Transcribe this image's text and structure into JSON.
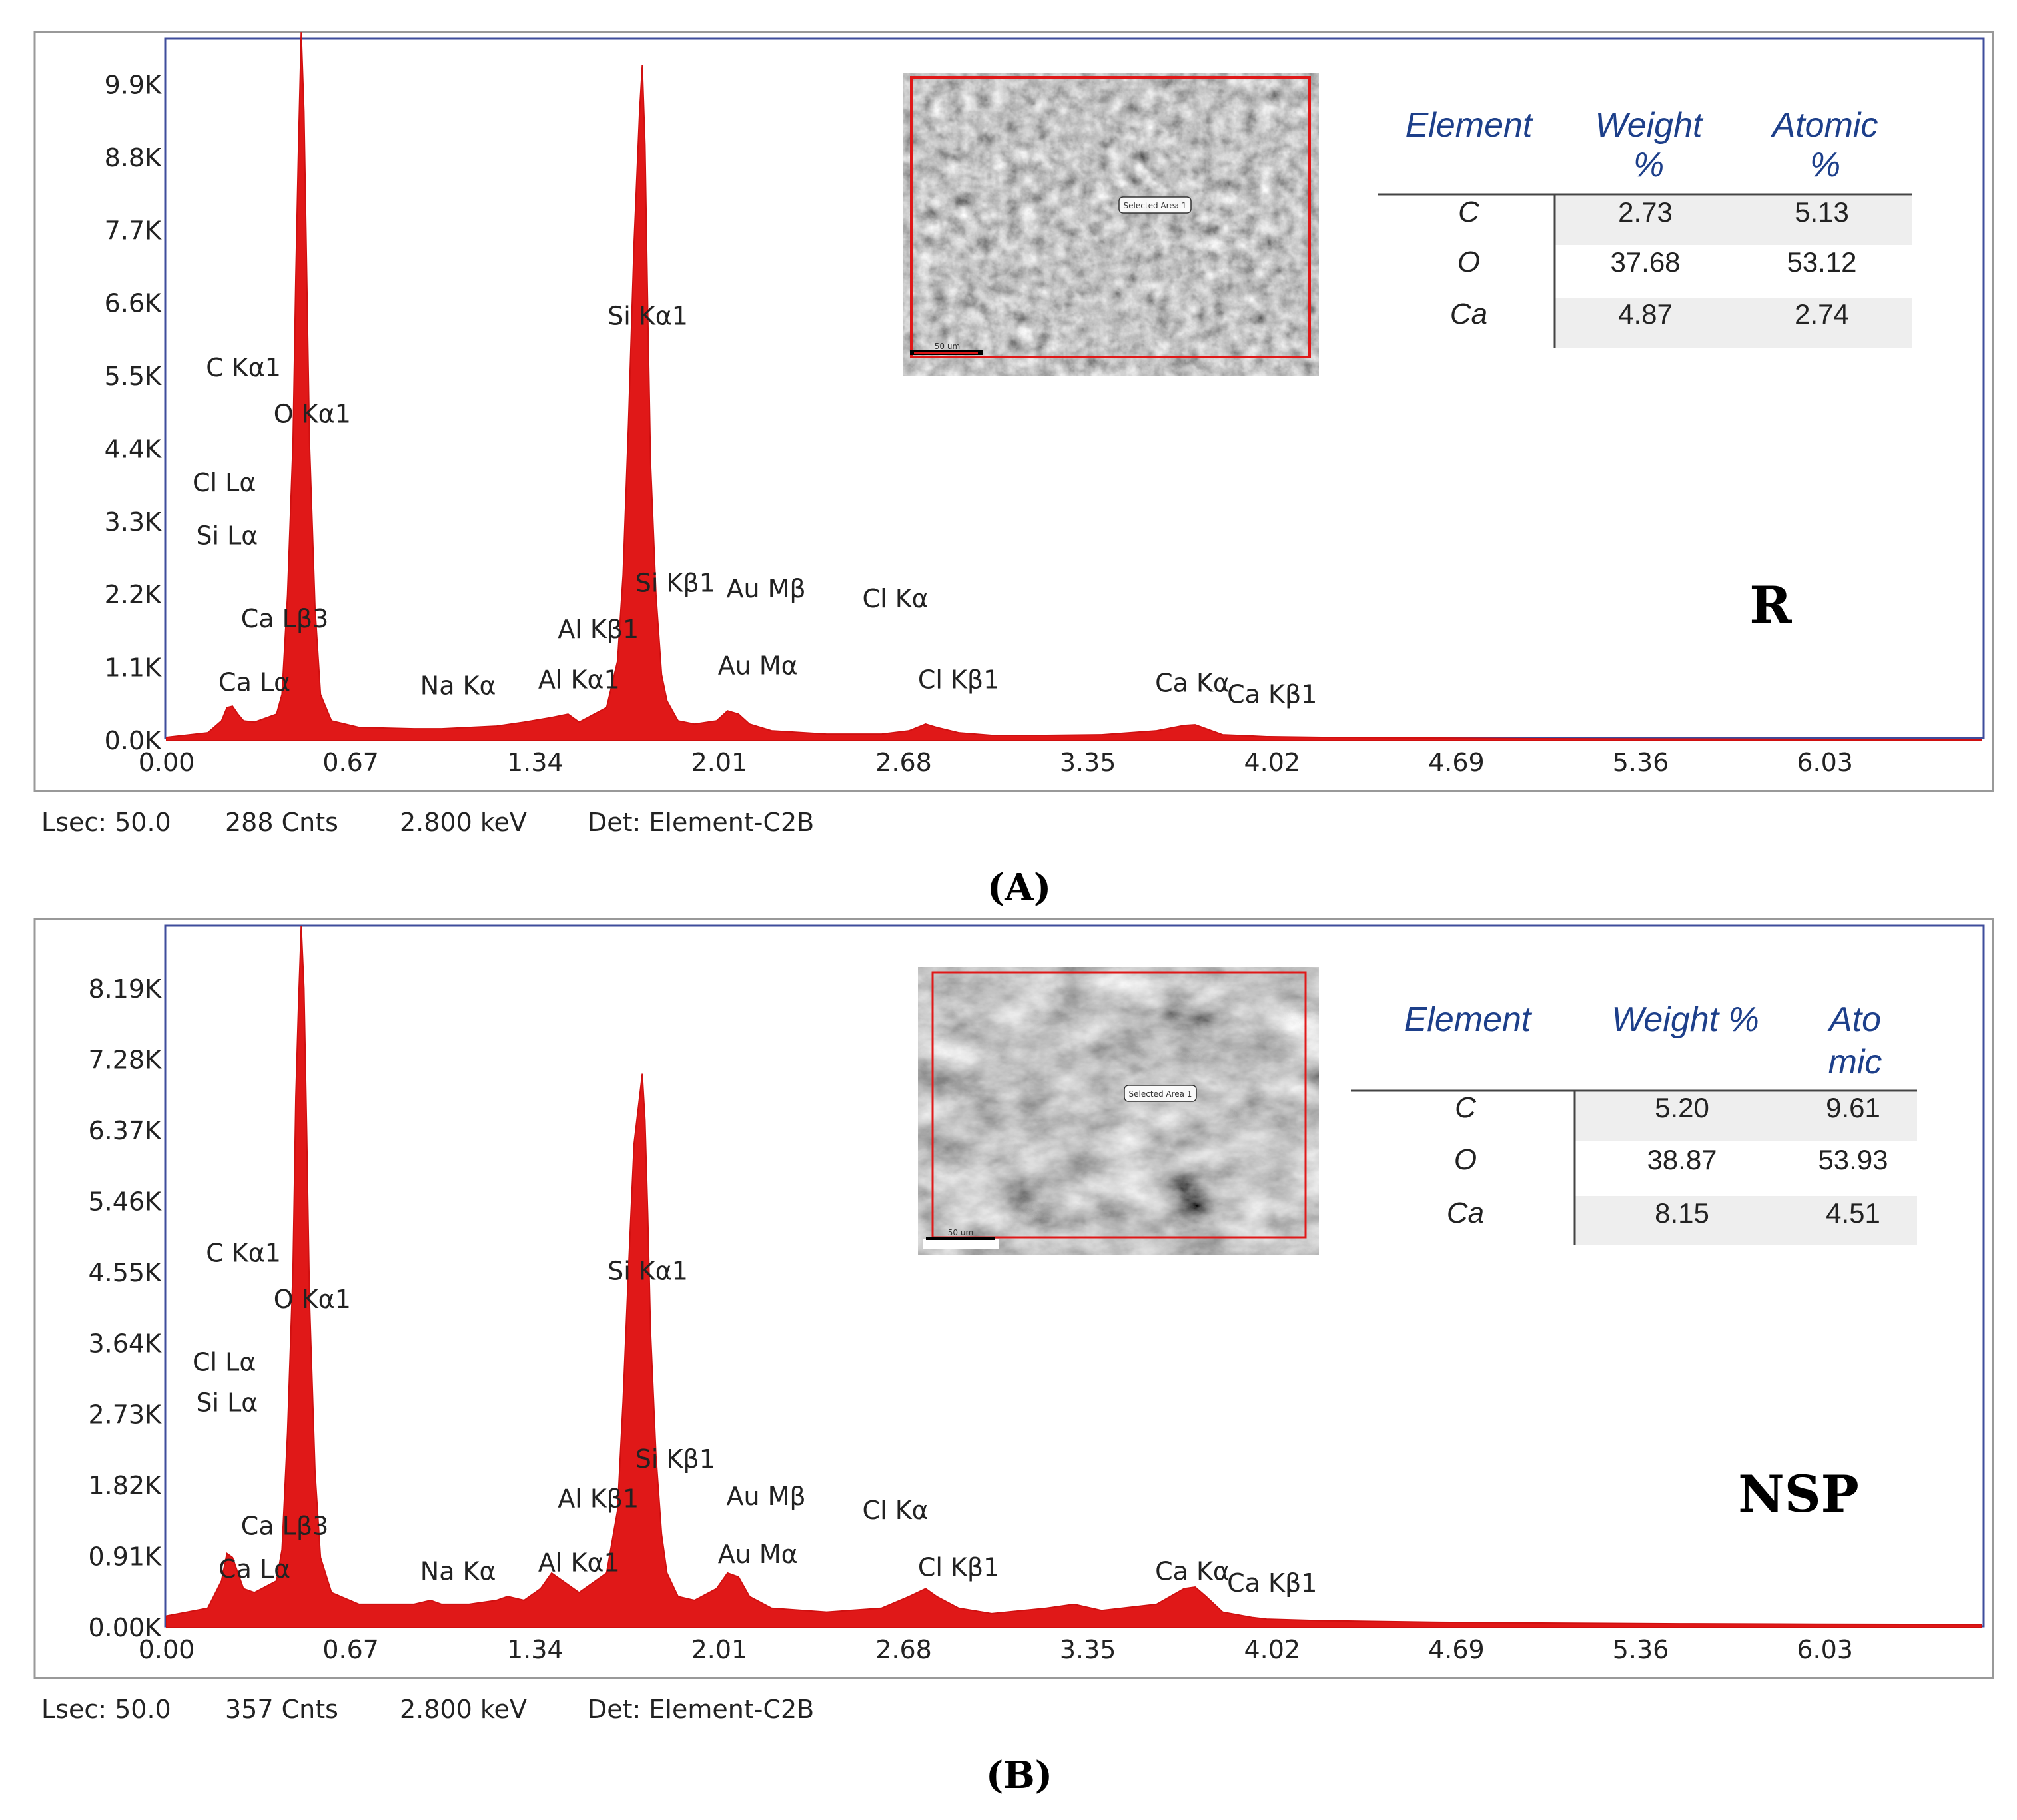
{
  "chart_data": [
    {
      "type": "area",
      "caption": "(A)",
      "sample_label": "R",
      "y_ticks": [
        "0.0K",
        "1.1K",
        "2.2K",
        "3.3K",
        "4.4K",
        "5.5K",
        "6.6K",
        "7.7K",
        "8.8K",
        "9.9K"
      ],
      "y_tick_values": [
        0,
        1100,
        2200,
        3300,
        4400,
        5500,
        6600,
        7700,
        8800,
        9900
      ],
      "ylim": [
        0,
        10600
      ],
      "x_ticks": [
        "0.00",
        "0.67",
        "1.34",
        "2.01",
        "2.68",
        "3.35",
        "4.02",
        "4.69",
        "5.36",
        "6.03"
      ],
      "x_tick_values": [
        0.0,
        0.67,
        1.34,
        2.01,
        2.68,
        3.35,
        4.02,
        4.69,
        5.36,
        6.03
      ],
      "xlim": [
        0,
        6.6
      ],
      "series": [
        {
          "x": [
            0.0,
            0.15,
            0.2,
            0.22,
            0.24,
            0.26,
            0.28,
            0.32,
            0.4,
            0.42,
            0.44,
            0.46,
            0.47,
            0.48,
            0.49,
            0.5,
            0.51,
            0.52,
            0.54,
            0.56,
            0.6,
            0.7,
            0.9,
            1.0,
            1.1,
            1.2,
            1.3,
            1.4,
            1.46,
            1.5,
            1.6,
            1.64,
            1.66,
            1.68,
            1.7,
            1.72,
            1.73,
            1.74,
            1.75,
            1.76,
            1.78,
            1.8,
            1.82,
            1.86,
            1.92,
            2.0,
            2.04,
            2.08,
            2.12,
            2.2,
            2.4,
            2.6,
            2.7,
            2.76,
            2.8,
            2.88,
            3.0,
            3.2,
            3.4,
            3.6,
            3.7,
            3.74,
            3.78,
            3.84,
            3.95,
            4.0,
            4.2,
            4.6,
            5.0,
            5.5,
            6.0,
            6.6
          ],
          "y": [
            50,
            120,
            300,
            500,
            520,
            400,
            300,
            280,
            400,
            700,
            2200,
            4500,
            7000,
            9000,
            10700,
            9500,
            7000,
            4500,
            2000,
            700,
            300,
            200,
            180,
            180,
            200,
            220,
            280,
            350,
            400,
            280,
            500,
            1200,
            2500,
            4800,
            7500,
            9500,
            10200,
            9000,
            6500,
            4200,
            2200,
            1000,
            600,
            300,
            250,
            300,
            450,
            400,
            250,
            150,
            100,
            100,
            150,
            250,
            200,
            120,
            80,
            80,
            90,
            150,
            230,
            240,
            180,
            90,
            70,
            60,
            50,
            40,
            30,
            25,
            20,
            20
          ]
        }
      ],
      "peak_labels": [
        {
          "text": "C  Kα1",
          "x": 0.28,
          "y": 5500
        },
        {
          "text": "O  Kα1",
          "x": 0.53,
          "y": 4800
        },
        {
          "text": "Cl Lα",
          "x": 0.21,
          "y": 3760
        },
        {
          "text": "Si Lα",
          "x": 0.22,
          "y": 2960
        },
        {
          "text": "Ca Lβ3",
          "x": 0.43,
          "y": 1710
        },
        {
          "text": "Ca Lα",
          "x": 0.32,
          "y": 750
        },
        {
          "text": "Na Kα",
          "x": 1.06,
          "y": 700
        },
        {
          "text": "Al Kα1",
          "x": 1.5,
          "y": 790
        },
        {
          "text": "Al Kβ1",
          "x": 1.57,
          "y": 1550
        },
        {
          "text": "Si Kα1",
          "x": 1.75,
          "y": 6280
        },
        {
          "text": "Si Kβ1",
          "x": 1.85,
          "y": 2250
        },
        {
          "text": "Au Mβ",
          "x": 2.18,
          "y": 2160
        },
        {
          "text": "Cl Kα",
          "x": 2.65,
          "y": 2010
        },
        {
          "text": "Au Mα",
          "x": 2.15,
          "y": 1000
        },
        {
          "text": "Cl Kβ1",
          "x": 2.88,
          "y": 790
        },
        {
          "text": "Ca Kα",
          "x": 3.73,
          "y": 740
        },
        {
          "text": "Ca Kβ1",
          "x": 4.02,
          "y": 570
        }
      ],
      "table": {
        "headers": [
          [
            "Element"
          ],
          [
            "Weight",
            "%"
          ],
          [
            "Atomic",
            "%"
          ]
        ],
        "rows": [
          {
            "element": "C",
            "weight": "2.73",
            "atomic": "5.13"
          },
          {
            "element": "O",
            "weight": "37.68",
            "atomic": "53.12"
          },
          {
            "element": "Ca",
            "weight": "4.87",
            "atomic": "2.74"
          }
        ]
      },
      "footer": [
        "Lsec: 50.0",
        "288 Cnts",
        "2.800 keV",
        "Det: Element-C2B"
      ],
      "colors": {
        "spectrum": "#e01818",
        "frame": "#3f4d9c"
      }
    },
    {
      "type": "area",
      "caption": "(B)",
      "sample_label": "NSP",
      "y_ticks": [
        "0.00K",
        "0.91K",
        "1.82K",
        "2.73K",
        "3.64K",
        "4.55K",
        "5.46K",
        "6.37K",
        "7.28K",
        "8.19K"
      ],
      "y_tick_values": [
        0,
        910,
        1820,
        2730,
        3640,
        4550,
        5460,
        6370,
        7280,
        8190
      ],
      "ylim": [
        0,
        9000
      ],
      "x_ticks": [
        "0.00",
        "0.67",
        "1.34",
        "2.01",
        "2.68",
        "3.35",
        "4.02",
        "4.69",
        "5.36",
        "6.03"
      ],
      "x_tick_values": [
        0.0,
        0.67,
        1.34,
        2.01,
        2.68,
        3.35,
        4.02,
        4.69,
        5.36,
        6.03
      ],
      "xlim": [
        0,
        6.6
      ],
      "series": [
        {
          "x": [
            0.0,
            0.15,
            0.2,
            0.22,
            0.24,
            0.26,
            0.28,
            0.32,
            0.4,
            0.42,
            0.44,
            0.46,
            0.47,
            0.48,
            0.49,
            0.5,
            0.51,
            0.52,
            0.54,
            0.56,
            0.6,
            0.7,
            0.9,
            0.96,
            1.0,
            1.1,
            1.2,
            1.24,
            1.3,
            1.36,
            1.4,
            1.44,
            1.5,
            1.6,
            1.64,
            1.66,
            1.68,
            1.7,
            1.72,
            1.73,
            1.74,
            1.75,
            1.76,
            1.78,
            1.8,
            1.82,
            1.86,
            1.92,
            2.0,
            2.04,
            2.08,
            2.12,
            2.2,
            2.4,
            2.6,
            2.7,
            2.76,
            2.8,
            2.88,
            3.0,
            3.2,
            3.3,
            3.4,
            3.6,
            3.7,
            3.74,
            3.78,
            3.84,
            3.95,
            4.0,
            4.2,
            4.6,
            5.0,
            5.5,
            6.0,
            6.6
          ],
          "y": [
            150,
            250,
            600,
            950,
            900,
            700,
            500,
            450,
            600,
            1000,
            2500,
            4600,
            6800,
            8000,
            9000,
            8200,
            6300,
            4200,
            2000,
            900,
            450,
            300,
            300,
            350,
            300,
            300,
            350,
            400,
            350,
            500,
            700,
            600,
            450,
            700,
            1500,
            2900,
            4600,
            6200,
            6800,
            7100,
            6500,
            5300,
            3800,
            2200,
            1200,
            700,
            400,
            350,
            500,
            700,
            650,
            400,
            250,
            200,
            250,
            400,
            500,
            400,
            250,
            180,
            250,
            300,
            220,
            300,
            500,
            520,
            400,
            200,
            130,
            110,
            90,
            70,
            60,
            50,
            45,
            40
          ]
        }
      ],
      "peak_labels": [
        {
          "text": "C  Kα1",
          "x": 0.28,
          "y": 4690
        },
        {
          "text": "O  Kα1",
          "x": 0.53,
          "y": 4100
        },
        {
          "text": "Cl Lα",
          "x": 0.21,
          "y": 3290
        },
        {
          "text": "Si Lα",
          "x": 0.22,
          "y": 2770
        },
        {
          "text": "Ca Lβ3",
          "x": 0.43,
          "y": 1190
        },
        {
          "text": "Ca Lα",
          "x": 0.32,
          "y": 640
        },
        {
          "text": "Na Kα",
          "x": 1.06,
          "y": 610
        },
        {
          "text": "Al Kα1",
          "x": 1.5,
          "y": 720
        },
        {
          "text": "Al Kβ1",
          "x": 1.57,
          "y": 1540
        },
        {
          "text": "Si Kα1",
          "x": 1.75,
          "y": 4460
        },
        {
          "text": "Si Kβ1",
          "x": 1.85,
          "y": 2050
        },
        {
          "text": "Au Mβ",
          "x": 2.18,
          "y": 1570
        },
        {
          "text": "Cl Kα",
          "x": 2.65,
          "y": 1390
        },
        {
          "text": "Au Mα",
          "x": 2.15,
          "y": 830
        },
        {
          "text": "Cl Kβ1",
          "x": 2.88,
          "y": 660
        },
        {
          "text": "Ca Kα",
          "x": 3.73,
          "y": 610
        },
        {
          "text": "Ca Kβ1",
          "x": 4.02,
          "y": 460
        }
      ],
      "table": {
        "headers": [
          [
            "Element"
          ],
          [
            "Weight %"
          ],
          [
            "Ato",
            "mic"
          ]
        ],
        "rows": [
          {
            "element": "C",
            "weight": "5.20",
            "atomic": "9.61"
          },
          {
            "element": "O",
            "weight": "38.87",
            "atomic": "53.93"
          },
          {
            "element": "Ca",
            "weight": "8.15",
            "atomic": "4.51"
          }
        ]
      },
      "footer": [
        "Lsec: 50.0",
        "357 Cnts",
        "2.800 keV",
        "Det: Element-C2B"
      ],
      "colors": {
        "spectrum": "#e01818",
        "frame": "#3f4d9c"
      }
    }
  ],
  "sem_images": [
    {
      "tag": "Selected Area 1",
      "scale": "50 um",
      "style": "rough"
    },
    {
      "tag": "Selected Area 1",
      "scale": "50 um",
      "style": "smooth"
    }
  ]
}
